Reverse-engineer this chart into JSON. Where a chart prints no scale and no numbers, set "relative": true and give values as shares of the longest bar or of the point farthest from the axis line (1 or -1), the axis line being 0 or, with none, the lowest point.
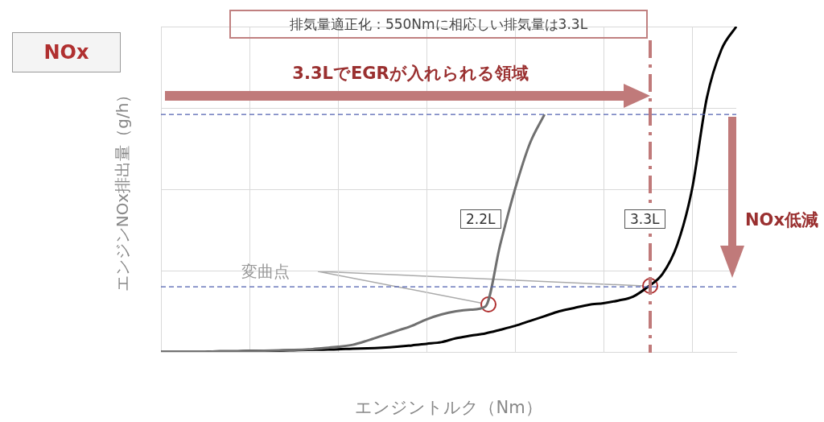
{
  "chart_data": {
    "type": "line",
    "relative": true,
    "xlabel": "エンジントルク（Nm）",
    "ylabel": "エンジンNOx排出量（g/h）",
    "categories": [
      null,
      null,
      null,
      null,
      null,
      null,
      null,
      null,
      null,
      null,
      null,
      null,
      null,
      null,
      null,
      null,
      null,
      null,
      null,
      null,
      null,
      null,
      null,
      null,
      null,
      null,
      null,
      null,
      null,
      null,
      null,
      null,
      null,
      null,
      null,
      null,
      null,
      null,
      null,
      null
    ],
    "series": [
      {
        "name": "2.2L",
        "color": "#707070",
        "values": [
          0,
          0,
          0,
          0,
          0.002,
          0.002,
          0.003,
          0.004,
          0.005,
          0.006,
          0.008,
          0.012,
          0.016,
          0.022,
          0.035,
          0.05,
          0.065,
          0.08,
          0.1,
          0.115,
          0.125,
          0.13,
          0.14,
          0.33,
          0.5,
          0.64,
          0.73,
          null,
          null,
          null,
          null,
          null,
          null,
          null,
          null,
          null,
          null,
          null,
          null,
          null
        ]
      },
      {
        "name": "3.3L",
        "color": "#000000",
        "values": [
          0,
          0,
          0,
          0,
          0.002,
          0.002,
          0.003,
          0.003,
          0.004,
          0.005,
          0.006,
          0.007,
          0.008,
          0.01,
          0.011,
          0.013,
          0.016,
          0.02,
          0.025,
          0.03,
          0.042,
          0.05,
          0.057,
          0.068,
          0.08,
          0.095,
          0.11,
          0.125,
          0.135,
          0.145,
          0.15,
          0.158,
          0.17,
          0.2,
          0.24,
          0.33,
          0.5,
          0.78,
          0.93,
          1
        ]
      }
    ],
    "ref_lines": [
      {
        "axis": "y",
        "value": 0.73,
        "color": "#5060b0",
        "line_style": "dashed"
      },
      {
        "axis": "y",
        "value": 0.2,
        "color": "#5060b0",
        "line_style": "dashed"
      }
    ],
    "annotations": [
      "NOx",
      "排気量適正化：550Nmに相応しい排気量は3.3L",
      "3.3LでEGRが入れられる領域",
      "NOx低減",
      "変曲点"
    ],
    "grid": true,
    "legend": false,
    "marker": "none",
    "line_style": "solid"
  }
}
